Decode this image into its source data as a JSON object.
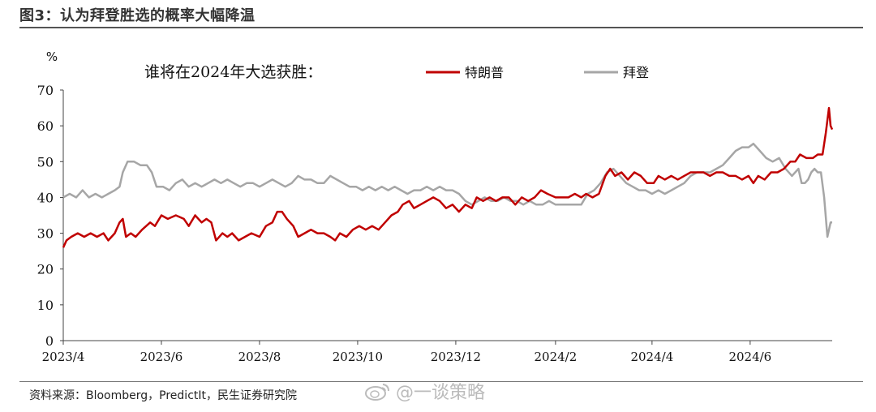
{
  "figure": {
    "title": "图3：认为拜登胜选的概率大幅降温",
    "source": "资料来源：Bloomberg，PredictIt，民生证券研究院",
    "watermark": "@一谈策略"
  },
  "chart_data": {
    "type": "line",
    "title": "谁将在2024年大选获胜：",
    "xlabel": "",
    "ylabel": "%",
    "ylim": [
      0,
      70
    ],
    "yticks": [
      0,
      10,
      20,
      30,
      40,
      50,
      60,
      70
    ],
    "xlim": [
      "2023-04-01",
      "2024-07-22"
    ],
    "xticks": [
      {
        "date": "2023-04-01",
        "label": "2023/4"
      },
      {
        "date": "2023-06-01",
        "label": "2023/6"
      },
      {
        "date": "2023-08-01",
        "label": "2023/8"
      },
      {
        "date": "2023-10-01",
        "label": "2023/10"
      },
      {
        "date": "2023-12-01",
        "label": "2023/12"
      },
      {
        "date": "2024-02-01",
        "label": "2024/2"
      },
      {
        "date": "2024-04-01",
        "label": "2024/4"
      },
      {
        "date": "2024-06-01",
        "label": "2024/6"
      }
    ],
    "grid": false,
    "legend": "top",
    "series": [
      {
        "name": "特朗普",
        "color": "#c00000",
        "points": [
          [
            "2023-04-01",
            26
          ],
          [
            "2023-04-03",
            28
          ],
          [
            "2023-04-06",
            29
          ],
          [
            "2023-04-10",
            30
          ],
          [
            "2023-04-14",
            29
          ],
          [
            "2023-04-18",
            30
          ],
          [
            "2023-04-22",
            29
          ],
          [
            "2023-04-26",
            30
          ],
          [
            "2023-04-29",
            28
          ],
          [
            "2023-05-03",
            30
          ],
          [
            "2023-05-06",
            33
          ],
          [
            "2023-05-08",
            34
          ],
          [
            "2023-05-10",
            29
          ],
          [
            "2023-05-13",
            30
          ],
          [
            "2023-05-16",
            29
          ],
          [
            "2023-05-20",
            31
          ],
          [
            "2023-05-25",
            33
          ],
          [
            "2023-05-28",
            32
          ],
          [
            "2023-06-01",
            35
          ],
          [
            "2023-06-05",
            34
          ],
          [
            "2023-06-10",
            35
          ],
          [
            "2023-06-15",
            34
          ],
          [
            "2023-06-18",
            32
          ],
          [
            "2023-06-22",
            35
          ],
          [
            "2023-06-26",
            33
          ],
          [
            "2023-06-29",
            34
          ],
          [
            "2023-07-02",
            33
          ],
          [
            "2023-07-05",
            28
          ],
          [
            "2023-07-09",
            30
          ],
          [
            "2023-07-12",
            29
          ],
          [
            "2023-07-15",
            30
          ],
          [
            "2023-07-19",
            28
          ],
          [
            "2023-07-23",
            29
          ],
          [
            "2023-07-27",
            30
          ],
          [
            "2023-08-01",
            29
          ],
          [
            "2023-08-05",
            32
          ],
          [
            "2023-08-09",
            33
          ],
          [
            "2023-08-12",
            36
          ],
          [
            "2023-08-15",
            36
          ],
          [
            "2023-08-18",
            34
          ],
          [
            "2023-08-22",
            32
          ],
          [
            "2023-08-25",
            29
          ],
          [
            "2023-08-29",
            30
          ],
          [
            "2023-09-02",
            31
          ],
          [
            "2023-09-06",
            30
          ],
          [
            "2023-09-10",
            30
          ],
          [
            "2023-09-14",
            29
          ],
          [
            "2023-09-17",
            28
          ],
          [
            "2023-09-20",
            30
          ],
          [
            "2023-09-24",
            29
          ],
          [
            "2023-09-28",
            31
          ],
          [
            "2023-10-02",
            32
          ],
          [
            "2023-10-06",
            31
          ],
          [
            "2023-10-10",
            32
          ],
          [
            "2023-10-14",
            31
          ],
          [
            "2023-10-18",
            33
          ],
          [
            "2023-10-22",
            35
          ],
          [
            "2023-10-26",
            36
          ],
          [
            "2023-10-29",
            38
          ],
          [
            "2023-11-02",
            39
          ],
          [
            "2023-11-05",
            37
          ],
          [
            "2023-11-09",
            38
          ],
          [
            "2023-11-13",
            39
          ],
          [
            "2023-11-17",
            40
          ],
          [
            "2023-11-21",
            39
          ],
          [
            "2023-11-25",
            37
          ],
          [
            "2023-11-29",
            38
          ],
          [
            "2023-12-03",
            36
          ],
          [
            "2023-12-07",
            38
          ],
          [
            "2023-12-11",
            37
          ],
          [
            "2023-12-14",
            40
          ],
          [
            "2023-12-18",
            39
          ],
          [
            "2023-12-22",
            40
          ],
          [
            "2023-12-26",
            39
          ],
          [
            "2023-12-30",
            40
          ],
          [
            "2024-01-03",
            40
          ],
          [
            "2024-01-07",
            38
          ],
          [
            "2024-01-11",
            40
          ],
          [
            "2024-01-15",
            39
          ],
          [
            "2024-01-19",
            40
          ],
          [
            "2024-01-23",
            42
          ],
          [
            "2024-01-27",
            41
          ],
          [
            "2024-02-01",
            40
          ],
          [
            "2024-02-05",
            40
          ],
          [
            "2024-02-09",
            40
          ],
          [
            "2024-02-13",
            41
          ],
          [
            "2024-02-17",
            40
          ],
          [
            "2024-02-20",
            41
          ],
          [
            "2024-02-24",
            40
          ],
          [
            "2024-02-28",
            41
          ],
          [
            "2024-03-03",
            46
          ],
          [
            "2024-03-06",
            48
          ],
          [
            "2024-03-09",
            46
          ],
          [
            "2024-03-13",
            47
          ],
          [
            "2024-03-17",
            45
          ],
          [
            "2024-03-21",
            47
          ],
          [
            "2024-03-25",
            46
          ],
          [
            "2024-03-29",
            44
          ],
          [
            "2024-04-02",
            44
          ],
          [
            "2024-04-05",
            46
          ],
          [
            "2024-04-09",
            45
          ],
          [
            "2024-04-13",
            46
          ],
          [
            "2024-04-17",
            45
          ],
          [
            "2024-04-21",
            46
          ],
          [
            "2024-04-25",
            47
          ],
          [
            "2024-04-29",
            47
          ],
          [
            "2024-05-03",
            47
          ],
          [
            "2024-05-07",
            46
          ],
          [
            "2024-05-11",
            47
          ],
          [
            "2024-05-15",
            47
          ],
          [
            "2024-05-19",
            46
          ],
          [
            "2024-05-23",
            46
          ],
          [
            "2024-05-27",
            45
          ],
          [
            "2024-05-31",
            46
          ],
          [
            "2024-06-03",
            44
          ],
          [
            "2024-06-06",
            46
          ],
          [
            "2024-06-10",
            45
          ],
          [
            "2024-06-14",
            47
          ],
          [
            "2024-06-18",
            47
          ],
          [
            "2024-06-22",
            48
          ],
          [
            "2024-06-26",
            50
          ],
          [
            "2024-06-29",
            50
          ],
          [
            "2024-07-02",
            52
          ],
          [
            "2024-07-06",
            51
          ],
          [
            "2024-07-10",
            51
          ],
          [
            "2024-07-13",
            52
          ],
          [
            "2024-07-16",
            52
          ],
          [
            "2024-07-18",
            58
          ],
          [
            "2024-07-20",
            65
          ],
          [
            "2024-07-21",
            60
          ],
          [
            "2024-07-22",
            59
          ]
        ]
      },
      {
        "name": "拜登",
        "color": "#a6a6a6",
        "points": [
          [
            "2023-04-01",
            40
          ],
          [
            "2023-04-05",
            41
          ],
          [
            "2023-04-09",
            40
          ],
          [
            "2023-04-13",
            42
          ],
          [
            "2023-04-17",
            40
          ],
          [
            "2023-04-21",
            41
          ],
          [
            "2023-04-25",
            40
          ],
          [
            "2023-04-29",
            41
          ],
          [
            "2023-05-03",
            42
          ],
          [
            "2023-05-06",
            43
          ],
          [
            "2023-05-08",
            47
          ],
          [
            "2023-05-11",
            50
          ],
          [
            "2023-05-15",
            50
          ],
          [
            "2023-05-19",
            49
          ],
          [
            "2023-05-23",
            49
          ],
          [
            "2023-05-26",
            47
          ],
          [
            "2023-05-29",
            43
          ],
          [
            "2023-06-02",
            43
          ],
          [
            "2023-06-06",
            42
          ],
          [
            "2023-06-10",
            44
          ],
          [
            "2023-06-14",
            45
          ],
          [
            "2023-06-18",
            43
          ],
          [
            "2023-06-22",
            44
          ],
          [
            "2023-06-26",
            43
          ],
          [
            "2023-06-30",
            44
          ],
          [
            "2023-07-04",
            45
          ],
          [
            "2023-07-08",
            44
          ],
          [
            "2023-07-12",
            45
          ],
          [
            "2023-07-16",
            44
          ],
          [
            "2023-07-20",
            43
          ],
          [
            "2023-07-24",
            44
          ],
          [
            "2023-07-28",
            44
          ],
          [
            "2023-08-01",
            43
          ],
          [
            "2023-08-05",
            44
          ],
          [
            "2023-08-09",
            45
          ],
          [
            "2023-08-13",
            44
          ],
          [
            "2023-08-17",
            43
          ],
          [
            "2023-08-21",
            44
          ],
          [
            "2023-08-25",
            46
          ],
          [
            "2023-08-29",
            45
          ],
          [
            "2023-09-02",
            45
          ],
          [
            "2023-09-06",
            44
          ],
          [
            "2023-09-10",
            44
          ],
          [
            "2023-09-14",
            46
          ],
          [
            "2023-09-18",
            45
          ],
          [
            "2023-09-22",
            44
          ],
          [
            "2023-09-26",
            43
          ],
          [
            "2023-09-30",
            43
          ],
          [
            "2023-10-04",
            42
          ],
          [
            "2023-10-08",
            43
          ],
          [
            "2023-10-12",
            42
          ],
          [
            "2023-10-16",
            43
          ],
          [
            "2023-10-20",
            42
          ],
          [
            "2023-10-24",
            43
          ],
          [
            "2023-10-28",
            42
          ],
          [
            "2023-11-01",
            41
          ],
          [
            "2023-11-05",
            42
          ],
          [
            "2023-11-09",
            42
          ],
          [
            "2023-11-13",
            43
          ],
          [
            "2023-11-17",
            42
          ],
          [
            "2023-11-21",
            43
          ],
          [
            "2023-11-25",
            42
          ],
          [
            "2023-11-29",
            42
          ],
          [
            "2023-12-03",
            41
          ],
          [
            "2023-12-07",
            39
          ],
          [
            "2023-12-11",
            38
          ],
          [
            "2023-12-15",
            39
          ],
          [
            "2023-12-19",
            40
          ],
          [
            "2023-12-23",
            39
          ],
          [
            "2023-12-27",
            39
          ],
          [
            "2023-12-31",
            40
          ],
          [
            "2024-01-04",
            39
          ],
          [
            "2024-01-08",
            39
          ],
          [
            "2024-01-12",
            38
          ],
          [
            "2024-01-16",
            39
          ],
          [
            "2024-01-20",
            38
          ],
          [
            "2024-01-24",
            38
          ],
          [
            "2024-01-28",
            39
          ],
          [
            "2024-02-01",
            38
          ],
          [
            "2024-02-05",
            38
          ],
          [
            "2024-02-09",
            38
          ],
          [
            "2024-02-13",
            38
          ],
          [
            "2024-02-17",
            38
          ],
          [
            "2024-02-21",
            41
          ],
          [
            "2024-02-25",
            42
          ],
          [
            "2024-02-29",
            44
          ],
          [
            "2024-03-04",
            47
          ],
          [
            "2024-03-08",
            48
          ],
          [
            "2024-03-12",
            46
          ],
          [
            "2024-03-16",
            44
          ],
          [
            "2024-03-20",
            43
          ],
          [
            "2024-03-24",
            42
          ],
          [
            "2024-03-28",
            42
          ],
          [
            "2024-04-01",
            41
          ],
          [
            "2024-04-05",
            42
          ],
          [
            "2024-04-09",
            41
          ],
          [
            "2024-04-13",
            42
          ],
          [
            "2024-04-17",
            43
          ],
          [
            "2024-04-21",
            44
          ],
          [
            "2024-04-25",
            46
          ],
          [
            "2024-04-29",
            47
          ],
          [
            "2024-05-03",
            47
          ],
          [
            "2024-05-07",
            47
          ],
          [
            "2024-05-11",
            48
          ],
          [
            "2024-05-15",
            49
          ],
          [
            "2024-05-19",
            51
          ],
          [
            "2024-05-23",
            53
          ],
          [
            "2024-05-27",
            54
          ],
          [
            "2024-05-31",
            54
          ],
          [
            "2024-06-03",
            55
          ],
          [
            "2024-06-07",
            53
          ],
          [
            "2024-06-11",
            51
          ],
          [
            "2024-06-15",
            50
          ],
          [
            "2024-06-19",
            51
          ],
          [
            "2024-06-23",
            48
          ],
          [
            "2024-06-27",
            46
          ],
          [
            "2024-07-01",
            48
          ],
          [
            "2024-07-03",
            44
          ],
          [
            "2024-07-05",
            44
          ],
          [
            "2024-07-07",
            45
          ],
          [
            "2024-07-09",
            47
          ],
          [
            "2024-07-11",
            48
          ],
          [
            "2024-07-13",
            47
          ],
          [
            "2024-07-15",
            47
          ],
          [
            "2024-07-17",
            40
          ],
          [
            "2024-07-19",
            29
          ],
          [
            "2024-07-21",
            33
          ],
          [
            "2024-07-22",
            33
          ]
        ]
      }
    ]
  }
}
